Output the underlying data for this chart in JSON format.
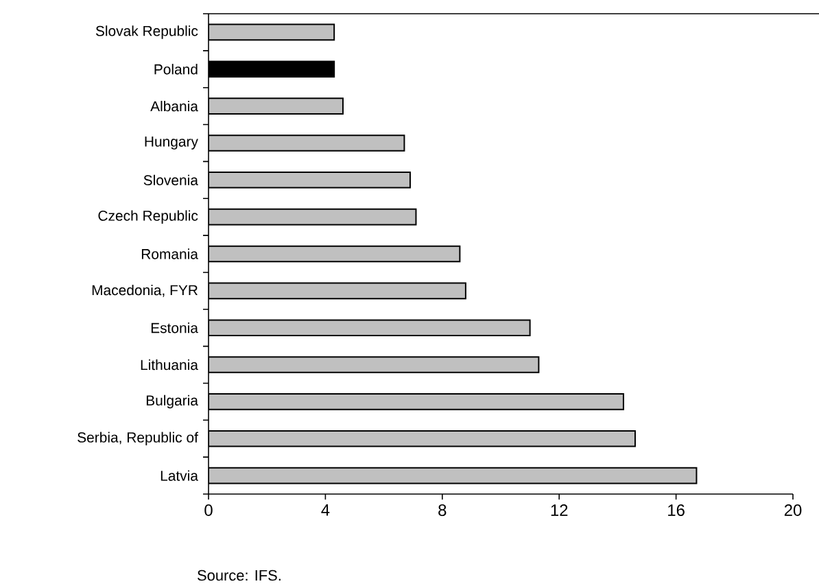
{
  "chart_data": {
    "type": "bar",
    "orientation": "horizontal",
    "categories": [
      "Slovak Republic",
      "Poland",
      "Albania",
      "Hungary",
      "Slovenia",
      "Czech Republic",
      "Romania",
      "Macedonia, FYR",
      "Estonia",
      "Lithuania",
      "Bulgaria",
      "Serbia, Republic of",
      "Latvia"
    ],
    "values": [
      4.3,
      4.3,
      4.6,
      6.7,
      6.9,
      7.1,
      8.6,
      8.8,
      11.0,
      11.3,
      14.2,
      14.6,
      16.7
    ],
    "colors": [
      "#c0c0c0",
      "#000000",
      "#c0c0c0",
      "#c0c0c0",
      "#c0c0c0",
      "#c0c0c0",
      "#c0c0c0",
      "#c0c0c0",
      "#c0c0c0",
      "#c0c0c0",
      "#c0c0c0",
      "#c0c0c0",
      "#c0c0c0"
    ],
    "xlim": [
      0,
      20
    ],
    "xticks": [
      0,
      4,
      8,
      12,
      16,
      20
    ],
    "annotations": [
      "Source: IFS."
    ]
  }
}
